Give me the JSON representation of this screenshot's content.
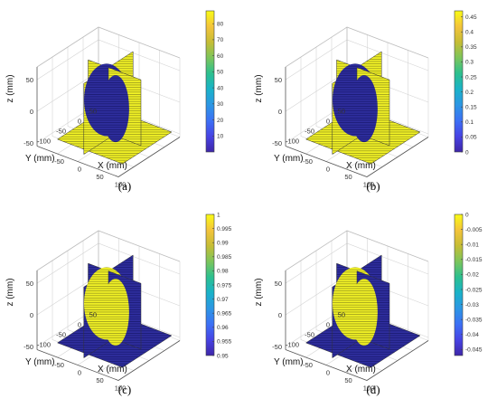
{
  "colors": {
    "high": "#f2f226",
    "low": "#2f2e9e",
    "stripe_high": "#8c8c1a",
    "stripe_low": "#16166a",
    "colormap": [
      "#3e26a8",
      "#4743e4",
      "#3c70f5",
      "#2c96e4",
      "#1ab2c9",
      "#2cc08f",
      "#7cc55b",
      "#c6bd35",
      "#f4c43b",
      "#f9fb15"
    ]
  },
  "chart_data": [
    {
      "type": "slice3d",
      "caption": "(a)",
      "xlabel": "X (mm)",
      "ylabel": "Y (mm)",
      "zlabel": "z (mm)",
      "xticks": [
        "-50",
        "0",
        "50",
        "100"
      ],
      "yticks": [
        "-100",
        "-50",
        "0",
        "50"
      ],
      "zticks": [
        "-50",
        "0",
        "50"
      ],
      "colorbar": {
        "min": 0,
        "max": 88,
        "ticks": [
          "10",
          "20",
          "30",
          "40",
          "50",
          "60",
          "70",
          "80"
        ]
      },
      "planes_value": "high",
      "sphere_value": "low"
    },
    {
      "type": "slice3d",
      "caption": "(b)",
      "xlabel": "X (mm)",
      "ylabel": "Y (mm)",
      "zlabel": "z (mm)",
      "xticks": [
        "-50",
        "0",
        "50",
        "100"
      ],
      "yticks": [
        "-100",
        "-50",
        "0",
        "50"
      ],
      "zticks": [
        "-50",
        "0",
        "50"
      ],
      "colorbar": {
        "min": 0,
        "max": 0.47,
        "ticks": [
          "0",
          "0.05",
          "0.1",
          "0.15",
          "0.2",
          "0.25",
          "0.3",
          "0.35",
          "0.4",
          "0.45"
        ]
      },
      "planes_value": "high",
      "sphere_value": "low"
    },
    {
      "type": "slice3d",
      "caption": "(c)",
      "xlabel": "X (mm)",
      "ylabel": "Y (mm)",
      "zlabel": "z (mm)",
      "xticks": [
        "-50",
        "0",
        "50",
        "100"
      ],
      "yticks": [
        "-100",
        "-50",
        "0",
        "50"
      ],
      "zticks": [
        "-50",
        "0",
        "50"
      ],
      "colorbar": {
        "min": 0.95,
        "max": 1.0,
        "ticks": [
          "0.95",
          "0.955",
          "0.96",
          "0.965",
          "0.97",
          "0.975",
          "0.98",
          "0.985",
          "0.99",
          "0.995",
          "1"
        ]
      },
      "planes_value": "low",
      "sphere_value": "high"
    },
    {
      "type": "slice3d",
      "caption": "(d)",
      "xlabel": "X (mm)",
      "ylabel": "Y (mm)",
      "zlabel": "z (mm)",
      "xticks": [
        "-50",
        "0",
        "50",
        "100"
      ],
      "yticks": [
        "-100",
        "-50",
        "0",
        "50"
      ],
      "zticks": [
        "-50",
        "0",
        "50"
      ],
      "colorbar": {
        "min": -0.047,
        "max": 0,
        "ticks": [
          "-0.045",
          "-0.04",
          "-0.035",
          "-0.03",
          "-0.025",
          "-0.02",
          "-0.015",
          "-0.01",
          "-0.005",
          "0"
        ]
      },
      "planes_value": "low",
      "sphere_value": "high"
    }
  ]
}
